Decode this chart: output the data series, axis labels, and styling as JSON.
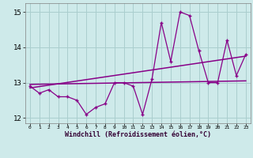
{
  "x_values": [
    0,
    1,
    2,
    3,
    4,
    5,
    6,
    7,
    8,
    9,
    10,
    11,
    12,
    13,
    14,
    15,
    16,
    17,
    18,
    19,
    20,
    21,
    22,
    23
  ],
  "y_main": [
    12.9,
    12.7,
    12.8,
    12.6,
    12.6,
    12.5,
    12.1,
    12.3,
    12.4,
    13.0,
    13.0,
    12.9,
    12.1,
    13.1,
    14.7,
    13.6,
    15.0,
    14.9,
    13.9,
    13.0,
    13.0,
    14.2,
    13.2,
    13.8
  ],
  "trend1_x": [
    0,
    23
  ],
  "trend1_y": [
    12.95,
    13.05
  ],
  "trend2_x": [
    0,
    23
  ],
  "trend2_y": [
    12.85,
    13.75
  ],
  "bg_color": "#ceeaea",
  "line_color": "#880088",
  "trend_color": "#880088",
  "xlabel": "Windchill (Refroidissement éolien,°C)",
  "xlim": [
    -0.5,
    23.5
  ],
  "ylim": [
    11.85,
    15.25
  ],
  "yticks": [
    12,
    13,
    14,
    15
  ],
  "xticks": [
    0,
    1,
    2,
    3,
    4,
    5,
    6,
    7,
    8,
    9,
    10,
    11,
    12,
    13,
    14,
    15,
    16,
    17,
    18,
    19,
    20,
    21,
    22,
    23
  ],
  "grid_color": "#aacece",
  "marker": "+"
}
